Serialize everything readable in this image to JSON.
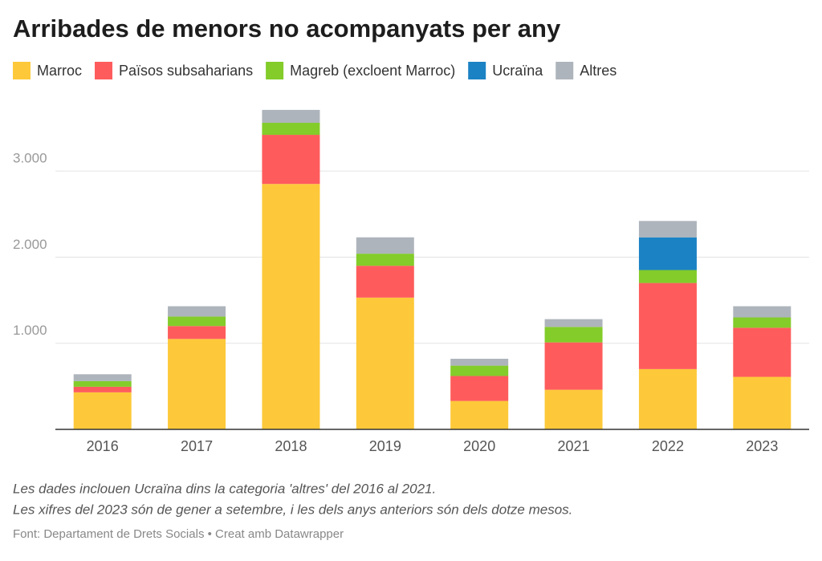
{
  "chart_data": {
    "type": "stacked_bar",
    "title": "Arribades de menors no acompanyats per any",
    "categories": [
      "2016",
      "2017",
      "2018",
      "2019",
      "2020",
      "2021",
      "2022",
      "2023"
    ],
    "series": [
      {
        "name": "Marroc",
        "color": "#fdc93a",
        "values": [
          430,
          1050,
          2850,
          1530,
          330,
          460,
          700,
          610
        ]
      },
      {
        "name": "Països subsaharians",
        "color": "#fe5c5c",
        "values": [
          65,
          150,
          570,
          370,
          290,
          550,
          1000,
          570
        ]
      },
      {
        "name": "Magreb (excloent Marroc)",
        "color": "#83cc2a",
        "values": [
          65,
          110,
          140,
          140,
          120,
          180,
          150,
          120
        ]
      },
      {
        "name": "Ucraïna",
        "color": "#1b82c4",
        "values": [
          null,
          null,
          null,
          null,
          null,
          null,
          380,
          null
        ]
      },
      {
        "name": "Altres",
        "color": "#aeb4bb",
        "values": [
          80,
          120,
          150,
          190,
          80,
          90,
          190,
          130
        ]
      }
    ],
    "ylim": [
      0,
      3750
    ],
    "yticks": [
      {
        "value": 1000,
        "label": "1.000"
      },
      {
        "value": 2000,
        "label": "2.000"
      },
      {
        "value": 3000,
        "label": "3.000"
      }
    ],
    "grid": true,
    "notes": [
      "Les dades inclouen Ucraïna dins la categoria 'altres' del 2016 al 2021.",
      "Les xifres del 2023 són de gener a setembre, i les dels anys anteriors són dels dotze mesos."
    ],
    "source": "Font: Departament de Drets Socials • Creat amb Datawrapper"
  }
}
